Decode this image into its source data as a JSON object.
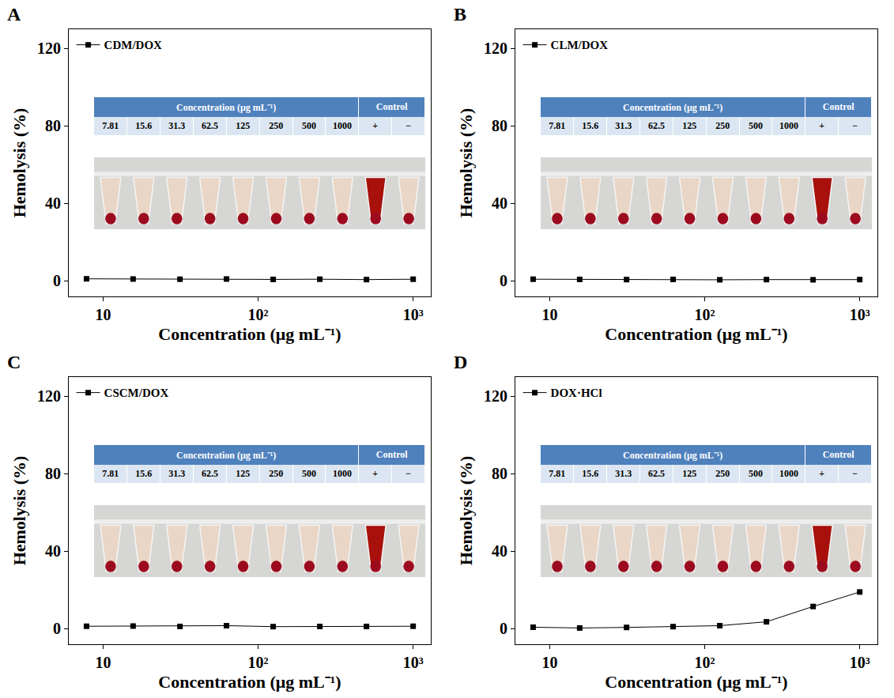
{
  "chart_data": [
    {
      "type": "line",
      "panel": "A",
      "x_label": "Concentration (μg mL⁻¹)",
      "y_label": "Hemolysis (%)",
      "x": [
        7.81,
        15.6,
        31.3,
        62.5,
        125,
        250,
        500,
        1000
      ],
      "series": [
        {
          "name": "CDM/DOX",
          "color": "#000000",
          "marker": "square",
          "line_style": "solid",
          "values": [
            1.1,
            1.0,
            0.9,
            1.0,
            0.8,
            0.9,
            0.7,
            0.9
          ]
        }
      ],
      "xlim": [
        6,
        1300
      ],
      "ylim": [
        -8,
        130
      ],
      "xticks": [
        10,
        {
          "value": 100,
          "label": "10²"
        },
        {
          "value": 1000,
          "label": "10³"
        }
      ],
      "yticks": [
        0,
        40,
        80,
        120
      ],
      "log": "x",
      "grid": false,
      "legend": "top left",
      "inset": {
        "header": "Concentration (μg mL⁻¹)",
        "concentrations": [
          "7.81",
          "15.6",
          "31.3",
          "62.5",
          "125",
          "250",
          "500",
          "1000"
        ],
        "control_header": "Control",
        "controls": [
          "+",
          "−"
        ]
      }
    },
    {
      "type": "line",
      "panel": "B",
      "x_label": "Concentration (μg mL⁻¹)",
      "y_label": "Hemolysis (%)",
      "x": [
        7.81,
        15.6,
        31.3,
        62.5,
        125,
        250,
        500,
        1000
      ],
      "series": [
        {
          "name": "CLM/DOX",
          "color": "#000000",
          "marker": "square",
          "line_style": "solid",
          "values": [
            0.9,
            0.8,
            0.7,
            0.8,
            0.6,
            0.7,
            0.6,
            0.7
          ]
        }
      ],
      "xlim": [
        6,
        1300
      ],
      "ylim": [
        -8,
        130
      ],
      "xticks": [
        10,
        {
          "value": 100,
          "label": "10²"
        },
        {
          "value": 1000,
          "label": "10³"
        }
      ],
      "yticks": [
        0,
        40,
        80,
        120
      ],
      "log": "x",
      "grid": false,
      "legend": "top left",
      "inset": {
        "header": "Concentration (μg mL⁻¹)",
        "concentrations": [
          "7.81",
          "15.6",
          "31.3",
          "62.5",
          "125",
          "250",
          "500",
          "1000"
        ],
        "control_header": "Control",
        "controls": [
          "+",
          "−"
        ]
      }
    },
    {
      "type": "line",
      "panel": "C",
      "x_label": "Concentration (μg mL⁻¹)",
      "y_label": "Hemolysis (%)",
      "x": [
        7.81,
        15.6,
        31.3,
        62.5,
        125,
        250,
        500,
        1000
      ],
      "series": [
        {
          "name": "CSCM/DOX",
          "color": "#000000",
          "marker": "square",
          "line_style": "solid",
          "values": [
            1.3,
            1.4,
            1.2,
            1.6,
            1.1,
            1.2,
            1.2,
            1.3
          ]
        }
      ],
      "xlim": [
        6,
        1300
      ],
      "ylim": [
        -8,
        130
      ],
      "xticks": [
        10,
        {
          "value": 100,
          "label": "10²"
        },
        {
          "value": 1000,
          "label": "10³"
        }
      ],
      "yticks": [
        0,
        40,
        80,
        120
      ],
      "log": "x",
      "grid": false,
      "legend": "top left",
      "inset": {
        "header": "Concentration (μg mL⁻¹)",
        "concentrations": [
          "7.81",
          "15.6",
          "31.3",
          "62.5",
          "125",
          "250",
          "500",
          "1000"
        ],
        "control_header": "Control",
        "controls": [
          "+",
          "−"
        ]
      }
    },
    {
      "type": "line",
      "panel": "D",
      "x_label": "Concentration (μg mL⁻¹)",
      "y_label": "Hemolysis (%)",
      "x": [
        7.81,
        15.6,
        31.3,
        62.5,
        125,
        250,
        500,
        1000
      ],
      "series": [
        {
          "name": "DOX·HCl",
          "color": "#000000",
          "marker": "square",
          "line_style": "solid",
          "values": [
            0.8,
            0.4,
            0.7,
            1.1,
            1.6,
            3.6,
            11.5,
            19.0
          ]
        }
      ],
      "xlim": [
        6,
        1300
      ],
      "ylim": [
        -8,
        130
      ],
      "xticks": [
        10,
        {
          "value": 100,
          "label": "10²"
        },
        {
          "value": 1000,
          "label": "10³"
        }
      ],
      "yticks": [
        0,
        40,
        80,
        120
      ],
      "log": "x",
      "grid": false,
      "legend": "top left",
      "inset": {
        "header": "Concentration (μg mL⁻¹)",
        "concentrations": [
          "7.81",
          "15.6",
          "31.3",
          "62.5",
          "125",
          "250",
          "500",
          "1000"
        ],
        "control_header": "Control",
        "controls": [
          "+",
          "−"
        ]
      }
    }
  ]
}
